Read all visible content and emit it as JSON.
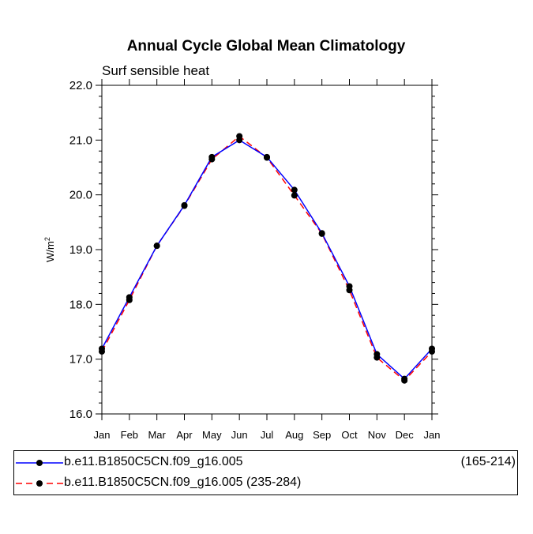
{
  "chart_data": {
    "type": "line",
    "title": "Annual Cycle Global Mean Climatology",
    "subtitle": "Surf sensible heat",
    "xlabel": "",
    "ylabel": "W/m",
    "ylabel_sup": "2",
    "categories": [
      "Jan",
      "Feb",
      "Mar",
      "Apr",
      "May",
      "Jun",
      "Jul",
      "Aug",
      "Sep",
      "Oct",
      "Nov",
      "Dec",
      "Jan"
    ],
    "ylim": [
      16.0,
      22.0
    ],
    "yticks": [
      "16.0",
      "17.0",
      "18.0",
      "19.0",
      "20.0",
      "21.0",
      "22.0"
    ],
    "series": [
      {
        "name": "b.e11.B1850C5CN.f09_g16.005",
        "range_label": "(165-214)",
        "color": "#0000ff",
        "dash": "solid",
        "values": [
          17.19,
          18.13,
          19.07,
          19.81,
          20.69,
          21.0,
          20.69,
          20.09,
          19.3,
          18.33,
          17.09,
          16.64,
          17.19
        ]
      },
      {
        "name": "b.e11.B1850C5CN.f09_g16.005 (235-284)",
        "color": "#ff0000",
        "dash": "dashed",
        "values": [
          17.14,
          18.08,
          19.07,
          19.8,
          20.65,
          21.07,
          20.68,
          19.99,
          19.29,
          18.26,
          17.03,
          16.61,
          17.14
        ]
      }
    ],
    "grid": false,
    "legend_position": "bottom"
  }
}
